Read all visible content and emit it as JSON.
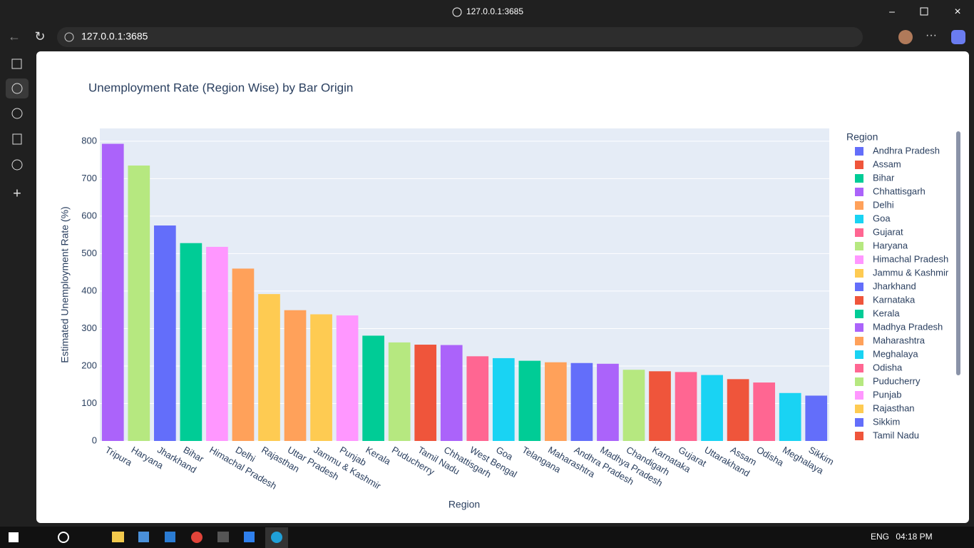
{
  "browser": {
    "tab_title": "127.0.0.1:3685",
    "address": "127.0.0.1:3685",
    "language": "ENG",
    "clock": "04:18 PM"
  },
  "chart_data": {
    "type": "bar",
    "title": "Unemployment Rate (Region Wise) by Bar Origin",
    "x_label": "Region",
    "y_label": "Estimated Unemployment Rate (%)",
    "categories": [
      "Tripura",
      "Haryana",
      "Jharkhand",
      "Bihar",
      "Himachal Pradesh",
      "Delhi",
      "Rajasthan",
      "Uttar Pradesh",
      "Jammu & Kashmir",
      "Punjab",
      "Kerala",
      "Puducherry",
      "Tamil Nadu",
      "Chhattisgarh",
      "West Bengal",
      "Goa",
      "Telangana",
      "Maharashtra",
      "Andhra Pradesh",
      "Madhya Pradesh",
      "Chandigarh",
      "Karnataka",
      "Gujarat",
      "Uttarakhand",
      "Assam",
      "Odisha",
      "Meghalaya",
      "Sikkim"
    ],
    "values": [
      793,
      735,
      575,
      528,
      518,
      460,
      392,
      349,
      338,
      335,
      281,
      263,
      257,
      256,
      226,
      221,
      214,
      210,
      208,
      206,
      190,
      186,
      184,
      176,
      165,
      156,
      128,
      121
    ],
    "colors": [
      "#ab63fa",
      "#b6e880",
      "#636efa",
      "#00cc96",
      "#ff97ff",
      "#ffa15a",
      "#fecb52",
      "#ffa15a",
      "#fecb52",
      "#ff97ff",
      "#00cc96",
      "#b6e880",
      "#ef553b",
      "#ab63fa",
      "#ff6692",
      "#19d3f3",
      "#00cc96",
      "#ffa15a",
      "#636efa",
      "#ab63fa",
      "#b6e880",
      "#ef553b",
      "#ff6692",
      "#19d3f3",
      "#ef553b",
      "#ff6692",
      "#19d3f3",
      "#636efa"
    ],
    "ylim": [
      0,
      834
    ],
    "yticks": [
      0,
      100,
      200,
      300,
      400,
      500,
      600,
      700,
      800
    ],
    "grid": true,
    "legend_title": "Region",
    "legend": [
      {
        "name": "Andhra Pradesh",
        "color": "#636efa"
      },
      {
        "name": "Assam",
        "color": "#ef553b"
      },
      {
        "name": "Bihar",
        "color": "#00cc96"
      },
      {
        "name": "Chhattisgarh",
        "color": "#ab63fa"
      },
      {
        "name": "Delhi",
        "color": "#ffa15a"
      },
      {
        "name": "Goa",
        "color": "#19d3f3"
      },
      {
        "name": "Gujarat",
        "color": "#ff6692"
      },
      {
        "name": "Haryana",
        "color": "#b6e880"
      },
      {
        "name": "Himachal Pradesh",
        "color": "#ff97ff"
      },
      {
        "name": "Jammu & Kashmir",
        "color": "#fecb52"
      },
      {
        "name": "Jharkhand",
        "color": "#636efa"
      },
      {
        "name": "Karnataka",
        "color": "#ef553b"
      },
      {
        "name": "Kerala",
        "color": "#00cc96"
      },
      {
        "name": "Madhya Pradesh",
        "color": "#ab63fa"
      },
      {
        "name": "Maharashtra",
        "color": "#ffa15a"
      },
      {
        "name": "Meghalaya",
        "color": "#19d3f3"
      },
      {
        "name": "Odisha",
        "color": "#ff6692"
      },
      {
        "name": "Puducherry",
        "color": "#b6e880"
      },
      {
        "name": "Punjab",
        "color": "#ff97ff"
      },
      {
        "name": "Rajasthan",
        "color": "#fecb52"
      },
      {
        "name": "Sikkim",
        "color": "#636efa"
      },
      {
        "name": "Tamil Nadu",
        "color": "#ef553b"
      }
    ]
  }
}
